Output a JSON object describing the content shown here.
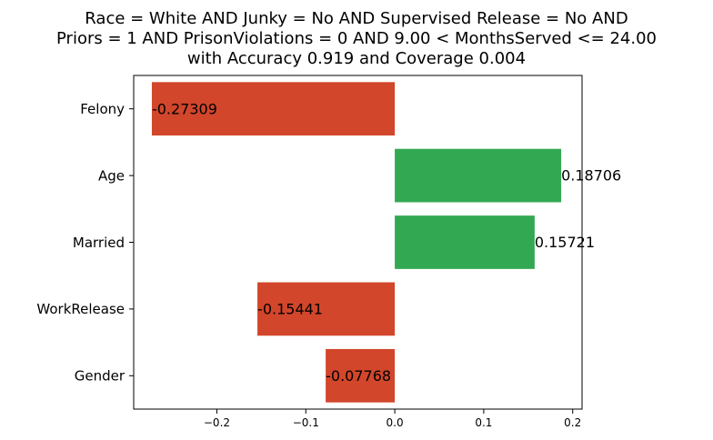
{
  "chart_data": {
    "type": "bar",
    "orientation": "horizontal",
    "title_lines": [
      "Race = White AND Junky = No AND Supervised Release = No AND",
      "Priors = 1 AND PrisonViolations = 0 AND 9.00 < MonthsServed <= 24.00",
      "with Accuracy 0.919 and Coverage 0.004"
    ],
    "categories": [
      "Felony",
      "Age",
      "Married",
      "WorkRelease",
      "Gender"
    ],
    "values": [
      -0.27309,
      0.18706,
      0.15721,
      -0.15441,
      -0.07768
    ],
    "value_labels": [
      "-0.27309",
      "0.18706",
      "0.15721",
      "-0.15441",
      "-0.07768"
    ],
    "xlim": [
      -0.2935,
      0.2105
    ],
    "xticks": [
      -0.2,
      -0.1,
      0.0,
      0.1,
      0.2
    ],
    "xtick_labels": [
      "−0.2",
      "−0.1",
      "0.0",
      "0.1",
      "0.2"
    ],
    "xlabel": "",
    "ylabel": "",
    "grid": false,
    "colors": {
      "positive": "#33a853",
      "negative": "#d2462b"
    }
  }
}
